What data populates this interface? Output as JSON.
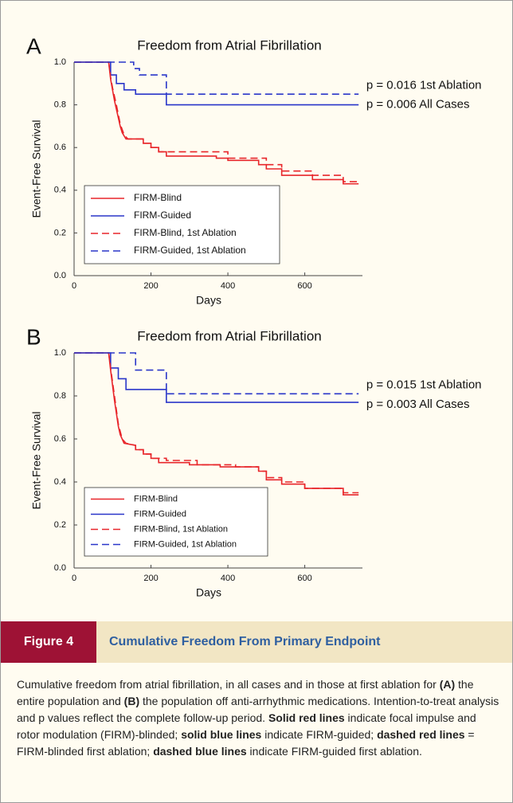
{
  "chart_data": [
    {
      "type": "line",
      "panel": "A",
      "title": "Freedom from Atrial Fibrillation",
      "x_label": "Days",
      "y_label": "Event-Free Survival",
      "xlim": [
        0,
        750
      ],
      "ylim": [
        0,
        1
      ],
      "xticks": [
        0,
        200,
        400,
        600
      ],
      "yticks": [
        {
          "value": 0,
          "label": "0.0"
        },
        {
          "value": 0.2,
          "label": "0.2"
        },
        {
          "value": 0.4,
          "label": "0.4"
        },
        {
          "value": 0.6,
          "label": "0.6"
        },
        {
          "value": 0.8,
          "label": "0.8"
        },
        {
          "value": 1,
          "label": "1.0"
        }
      ],
      "legend": "lower left",
      "annotations": [
        {
          "text": "p = 0.016 1st Ablation",
          "x": 760,
          "y": 0.89
        },
        {
          "text": "p = 0.006 All Cases",
          "x": 760,
          "y": 0.8
        }
      ],
      "series": [
        {
          "name": "FIRM-Blind",
          "color": "#e8262b",
          "dashed": false,
          "x": [
            0,
            90,
            95,
            100,
            105,
            110,
            115,
            120,
            125,
            135,
            180,
            180,
            200,
            200,
            220,
            220,
            240,
            240,
            370,
            370,
            400,
            400,
            480,
            480,
            500,
            500,
            540,
            540,
            620,
            620,
            700,
            700,
            740
          ],
          "values": [
            1,
            1,
            0.92,
            0.87,
            0.82,
            0.78,
            0.74,
            0.7,
            0.67,
            0.64,
            0.64,
            0.62,
            0.62,
            0.6,
            0.6,
            0.58,
            0.58,
            0.56,
            0.56,
            0.55,
            0.55,
            0.54,
            0.54,
            0.52,
            0.52,
            0.5,
            0.5,
            0.47,
            0.47,
            0.45,
            0.45,
            0.43,
            0.43
          ]
        },
        {
          "name": "FIRM-Guided",
          "color": "#2a36c9",
          "dashed": false,
          "x": [
            0,
            95,
            95,
            110,
            110,
            130,
            130,
            160,
            160,
            240,
            240,
            740
          ],
          "values": [
            1,
            1,
            0.94,
            0.94,
            0.9,
            0.9,
            0.87,
            0.87,
            0.85,
            0.85,
            0.8,
            0.8
          ]
        },
        {
          "name": "FIRM-Blind, 1st Ablation",
          "color": "#e8262b",
          "dashed": true,
          "x": [
            0,
            90,
            95,
            100,
            110,
            120,
            130,
            140,
            180,
            180,
            200,
            200,
            220,
            220,
            240,
            400,
            400,
            500,
            500,
            540,
            540,
            620,
            620,
            700,
            700,
            740
          ],
          "values": [
            1,
            1,
            0.93,
            0.88,
            0.8,
            0.71,
            0.66,
            0.64,
            0.64,
            0.62,
            0.62,
            0.6,
            0.6,
            0.58,
            0.58,
            0.58,
            0.55,
            0.55,
            0.52,
            0.52,
            0.49,
            0.49,
            0.47,
            0.47,
            0.44,
            0.44
          ]
        },
        {
          "name": "FIRM-Guided, 1st Ablation",
          "color": "#2a36c9",
          "dashed": true,
          "x": [
            0,
            155,
            155,
            170,
            170,
            240,
            240,
            740
          ],
          "values": [
            1,
            1,
            0.97,
            0.97,
            0.94,
            0.94,
            0.85,
            0.85
          ]
        }
      ]
    },
    {
      "type": "line",
      "panel": "B",
      "title": "Freedom from Atrial Fibrillation",
      "x_label": "Days",
      "y_label": "Event-Free Survival",
      "xlim": [
        0,
        750
      ],
      "ylim": [
        0,
        1
      ],
      "xticks": [
        0,
        200,
        400,
        600
      ],
      "yticks": [
        {
          "value": 0,
          "label": "0.0"
        },
        {
          "value": 0.2,
          "label": "0.2"
        },
        {
          "value": 0.4,
          "label": "0.4"
        },
        {
          "value": 0.6,
          "label": "0.6"
        },
        {
          "value": 0.8,
          "label": "0.8"
        },
        {
          "value": 1,
          "label": "1.0"
        }
      ],
      "legend": "lower left",
      "annotations": [
        {
          "text": "p = 0.015 1st Ablation",
          "x": 760,
          "y": 0.85
        },
        {
          "text": "p = 0.003 All Cases",
          "x": 760,
          "y": 0.76
        }
      ],
      "series": [
        {
          "name": "FIRM-Blind",
          "color": "#e8262b",
          "dashed": false,
          "x": [
            0,
            90,
            95,
            100,
            105,
            110,
            115,
            120,
            130,
            160,
            160,
            180,
            180,
            200,
            200,
            220,
            220,
            300,
            300,
            380,
            380,
            480,
            480,
            500,
            500,
            540,
            540,
            600,
            600,
            700,
            700,
            740
          ],
          "values": [
            1,
            1,
            0.92,
            0.85,
            0.78,
            0.72,
            0.66,
            0.62,
            0.58,
            0.57,
            0.55,
            0.55,
            0.53,
            0.53,
            0.51,
            0.51,
            0.49,
            0.49,
            0.48,
            0.48,
            0.47,
            0.47,
            0.45,
            0.45,
            0.41,
            0.41,
            0.39,
            0.39,
            0.37,
            0.37,
            0.34,
            0.34
          ]
        },
        {
          "name": "FIRM-Guided",
          "color": "#2a36c9",
          "dashed": false,
          "x": [
            0,
            95,
            95,
            115,
            115,
            135,
            135,
            240,
            240,
            740
          ],
          "values": [
            1,
            1,
            0.93,
            0.93,
            0.88,
            0.88,
            0.83,
            0.83,
            0.77,
            0.77
          ]
        },
        {
          "name": "FIRM-Blind, 1st Ablation",
          "color": "#e8262b",
          "dashed": true,
          "x": [
            0,
            90,
            95,
            105,
            115,
            125,
            135,
            160,
            160,
            180,
            180,
            200,
            200,
            240,
            240,
            320,
            320,
            420,
            420,
            480,
            480,
            500,
            500,
            540,
            540,
            600,
            600,
            700,
            700,
            740
          ],
          "values": [
            1,
            1,
            0.93,
            0.8,
            0.67,
            0.6,
            0.58,
            0.57,
            0.55,
            0.55,
            0.53,
            0.53,
            0.51,
            0.51,
            0.5,
            0.5,
            0.48,
            0.48,
            0.47,
            0.47,
            0.45,
            0.45,
            0.42,
            0.42,
            0.4,
            0.4,
            0.37,
            0.37,
            0.35,
            0.35
          ]
        },
        {
          "name": "FIRM-Guided, 1st Ablation",
          "color": "#2a36c9",
          "dashed": true,
          "x": [
            0,
            160,
            160,
            240,
            240,
            740
          ],
          "values": [
            1,
            1,
            0.92,
            0.92,
            0.81,
            0.81
          ]
        }
      ]
    }
  ],
  "figure": {
    "label": "Figure 4",
    "title": "Cumulative Freedom From Primary Endpoint",
    "caption": [
      {
        "text": "Cumulative freedom from atrial fibrillation, in all cases and in those at first ablation for ",
        "bold": false
      },
      {
        "text": "(A)",
        "bold": true
      },
      {
        "text": " the entire population and ",
        "bold": false
      },
      {
        "text": "(B)",
        "bold": true
      },
      {
        "text": " the population off anti-arrhythmic medications. Intention-to-treat analysis and p values reflect the complete follow-up period. ",
        "bold": false
      },
      {
        "text": "Solid red lines",
        "bold": true
      },
      {
        "text": " indicate focal impulse and rotor modulation (FIRM)-blinded; ",
        "bold": false
      },
      {
        "text": "solid blue lines",
        "bold": true
      },
      {
        "text": " indicate FIRM-guided; ",
        "bold": false
      },
      {
        "text": "dashed red lines",
        "bold": true
      },
      {
        "text": " = FIRM-blinded first ablation; ",
        "bold": false
      },
      {
        "text": "dashed blue lines",
        "bold": true
      },
      {
        "text": " indicate FIRM-guided first ablation.",
        "bold": false
      }
    ]
  }
}
